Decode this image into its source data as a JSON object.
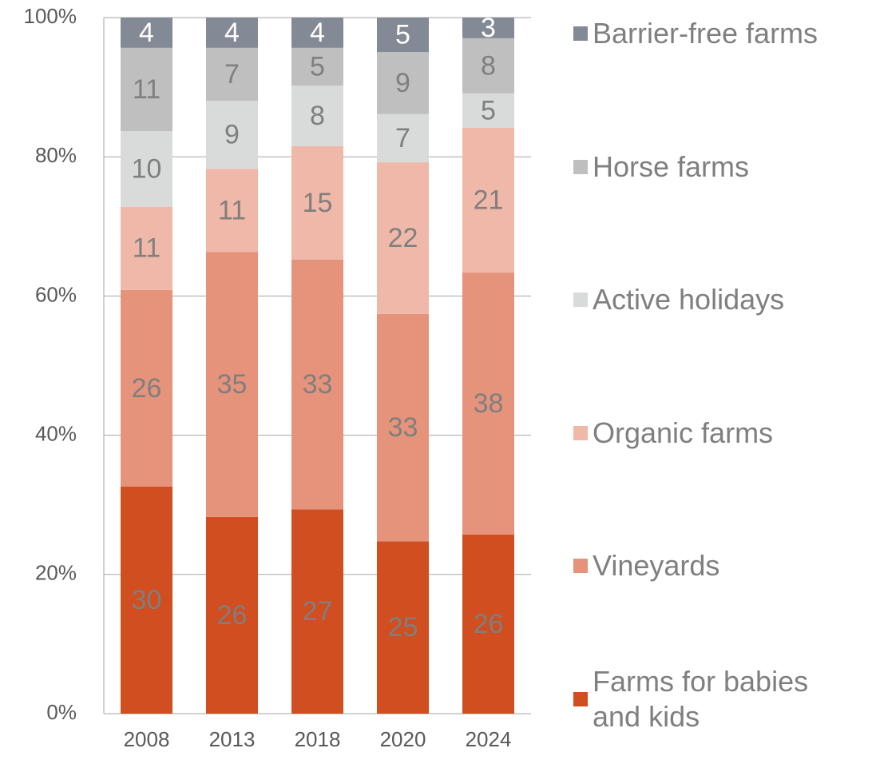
{
  "chart_data": {
    "type": "stacked_percent",
    "categories": [
      "2008",
      "2013",
      "2018",
      "2020",
      "2024"
    ],
    "series": [
      {
        "name": "Farms for babies and kids",
        "color": "#d04e1f",
        "label_color": "#7f7f7f",
        "values": [
          30,
          26,
          27,
          25,
          26
        ]
      },
      {
        "name": "Vineyards",
        "color": "#e6937b",
        "label_color": "#7f7f7f",
        "values": [
          26,
          35,
          33,
          33,
          38
        ]
      },
      {
        "name": "Organic farms",
        "color": "#f0b8a8",
        "label_color": "#7f7f7f",
        "values": [
          11,
          11,
          15,
          22,
          21
        ]
      },
      {
        "name": "Active holidays",
        "color": "#d9dbdb",
        "label_color": "#7f7f7f",
        "values": [
          10,
          9,
          8,
          7,
          5
        ]
      },
      {
        "name": "Horse farms",
        "color": "#bfbfbf",
        "label_color": "#7f7f7f",
        "values": [
          11,
          7,
          5,
          9,
          8
        ]
      },
      {
        "name": "Barrier-free farms",
        "color": "#838a95",
        "label_color": "#ffffff",
        "values": [
          4,
          4,
          4,
          5,
          3
        ]
      }
    ],
    "ylim": [
      0,
      100
    ],
    "yticks": [
      {
        "value": 0,
        "label": "0%"
      },
      {
        "value": 20,
        "label": "20%"
      },
      {
        "value": 40,
        "label": "40%"
      },
      {
        "value": 60,
        "label": "60%"
      },
      {
        "value": 80,
        "label": "80%"
      },
      {
        "value": 100,
        "label": "100%"
      }
    ],
    "grid": true,
    "legend": "right"
  }
}
